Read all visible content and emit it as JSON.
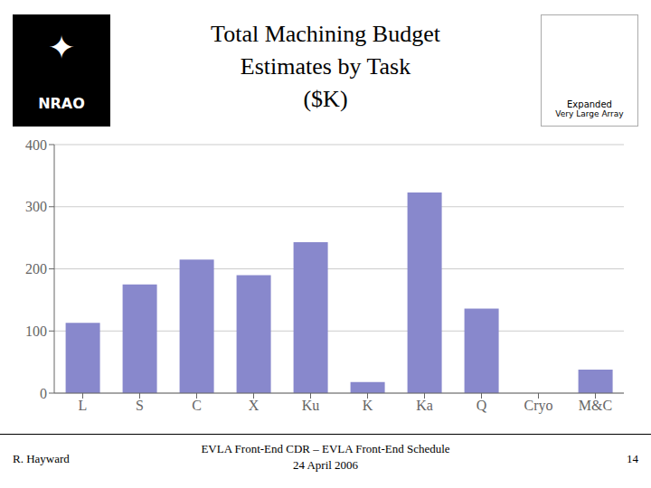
{
  "chart_data": {
    "type": "bar",
    "title": "Total Machining Budget\nEstimates by Task\n($K)",
    "categories": [
      "L",
      "S",
      "C",
      "X",
      "Ku",
      "K",
      "Ka",
      "Q",
      "Cryo",
      "M&C"
    ],
    "values": [
      113,
      175,
      215,
      190,
      243,
      18,
      323,
      136,
      0,
      38
    ],
    "color": "#8888cc",
    "ylim": [
      0,
      400
    ],
    "yticks": [
      0,
      100,
      200,
      300,
      400
    ],
    "grid": true,
    "annotations": [
      "✦",
      "NRAO",
      "Expanded",
      "Very Large Array",
      "R. Hayward",
      "EVLA Front-End CDR – EVLA Front-End Schedule\n24 April 2006",
      "14"
    ]
  }
}
